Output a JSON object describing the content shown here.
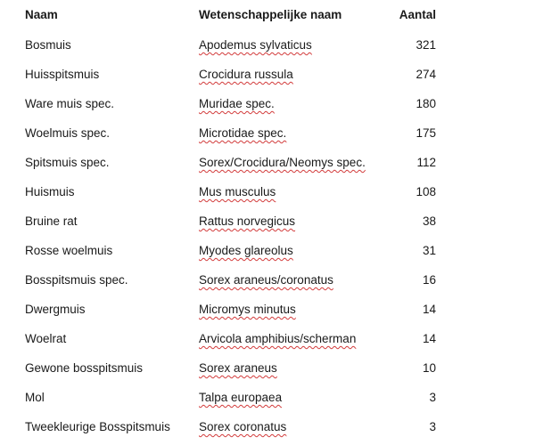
{
  "headers": {
    "name": "Naam",
    "scientific": "Wetenschappelijke naam",
    "count": "Aantal"
  },
  "rows": [
    {
      "name": "Bosmuis",
      "scientific": "Apodemus sylvaticus",
      "count": "321"
    },
    {
      "name": "Huisspitsmuis",
      "scientific": "Crocidura russula",
      "count": "274"
    },
    {
      "name": "Ware muis spec.",
      "scientific": "Muridae spec.",
      "count": "180"
    },
    {
      "name": "Woelmuis spec.",
      "scientific": "Microtidae spec.",
      "count": "175"
    },
    {
      "name": "Spitsmuis spec.",
      "scientific": "Sorex/Crocidura/Neomys spec.",
      "count": "112"
    },
    {
      "name": "Huismuis",
      "scientific": "Mus musculus",
      "count": "108"
    },
    {
      "name": "Bruine rat",
      "scientific": "Rattus norvegicus",
      "count": "38"
    },
    {
      "name": "Rosse woelmuis",
      "scientific": "Myodes glareolus",
      "count": "31"
    },
    {
      "name": "Bosspitsmuis spec.",
      "scientific": "Sorex araneus/coronatus",
      "count": "16"
    },
    {
      "name": "Dwergmuis",
      "scientific": "Micromys minutus",
      "count": "14"
    },
    {
      "name": "Woelrat",
      "scientific": "Arvicola amphibius/scherman",
      "count": "14"
    },
    {
      "name": "Gewone bosspitsmuis",
      "scientific": "Sorex araneus",
      "count": "10"
    },
    {
      "name": "Mol",
      "scientific": "Talpa europaea",
      "count": "3"
    },
    {
      "name": "Tweekleurige Bosspitsmuis",
      "scientific": "Sorex coronatus",
      "count": "3"
    }
  ]
}
